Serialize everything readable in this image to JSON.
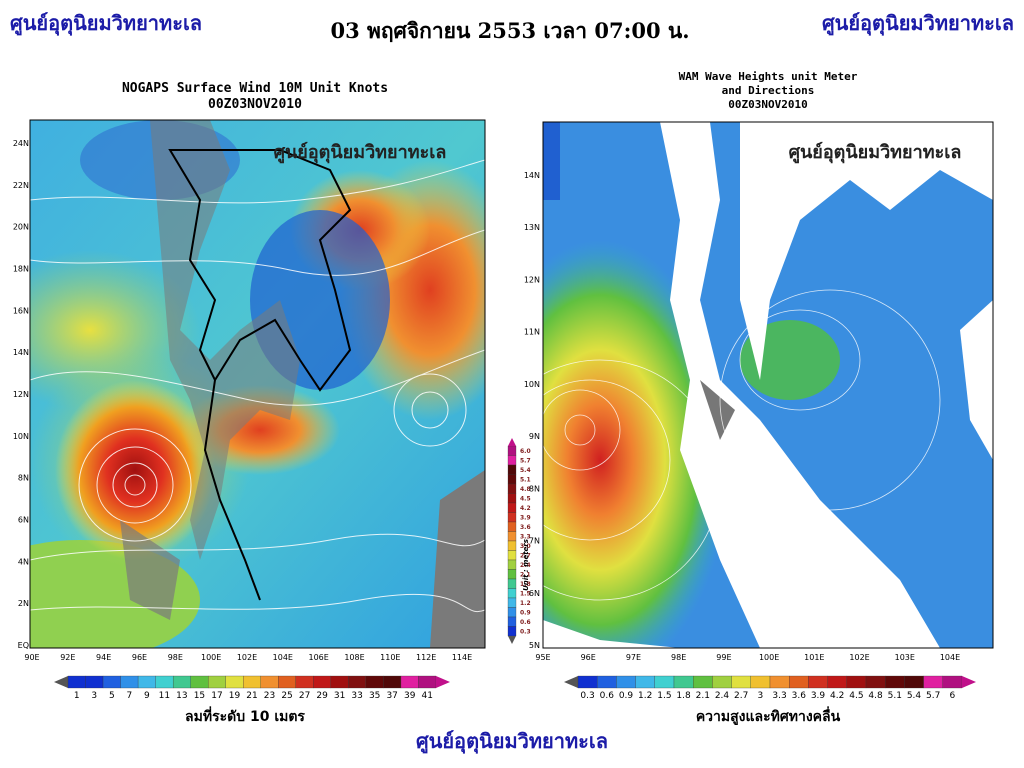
{
  "header": {
    "left": "ศูนย์อุตุนิยมวิทยาทะเล",
    "center": "03 พฤศจิกายน 2553 เวลา 07:00 น.",
    "right": "ศูนย์อุตุนิยมวิทยาทะเล"
  },
  "wind_map": {
    "title": "NOGAPS Surface Wind 10M Unit Knots",
    "subtitle": "00Z03NOV2010",
    "watermark": "ศูนย์อุตุนิยมวิทยาทะเล",
    "y_labels": [
      "24N",
      "22N",
      "20N",
      "18N",
      "16N",
      "14N",
      "12N",
      "10N",
      "8N",
      "6N",
      "4N",
      "2N",
      "EQ"
    ],
    "x_labels": [
      "90E",
      "92E",
      "94E",
      "96E",
      "98E",
      "100E",
      "102E",
      "104E",
      "106E",
      "108E",
      "110E",
      "112E",
      "114E"
    ],
    "colorbar_labels": [
      "1",
      "3",
      "5",
      "7",
      "9",
      "11",
      "13",
      "15",
      "17",
      "19",
      "21",
      "23",
      "25",
      "27",
      "29",
      "31",
      "33",
      "35",
      "37",
      "39",
      "41"
    ],
    "caption": "ลมที่ระดับ 10 เมตร"
  },
  "side_colorbar": {
    "labels": [
      "6.0",
      "5.7",
      "5.4",
      "5.1",
      "4.8",
      "4.5",
      "4.2",
      "3.9",
      "3.6",
      "3.3",
      "3.0",
      "2.7",
      "2.4",
      "2.1",
      "1.8",
      "1.5",
      "1.2",
      "0.9",
      "0.6",
      "0.3"
    ],
    "unit": "Unit : meters"
  },
  "wave_map": {
    "title": "WAM Wave Heights unit Meter",
    "title_line2": "and Directions",
    "subtitle": "00Z03NOV2010",
    "watermark": "ศูนย์อุตุนิยมวิทยาทะเล",
    "y_labels": [
      "14N",
      "13N",
      "12N",
      "11N",
      "10N",
      "9N",
      "8N",
      "7N",
      "6N",
      "5N"
    ],
    "x_labels": [
      "95E",
      "96E",
      "97E",
      "98E",
      "99E",
      "100E",
      "101E",
      "102E",
      "103E",
      "104E"
    ],
    "colorbar_labels": [
      "0.3",
      "0.6",
      "0.9",
      "1.2",
      "1.5",
      "1.8",
      "2.1",
      "2.4",
      "2.7",
      "3",
      "3.3",
      "3.6",
      "3.9",
      "4.2",
      "4.5",
      "4.8",
      "5.1",
      "5.4",
      "5.7",
      "6"
    ],
    "caption": "ความสูงและทิศทางคลื่น"
  },
  "footer": "ศูนย์อุตุนิยมวิทยาทะเล"
}
